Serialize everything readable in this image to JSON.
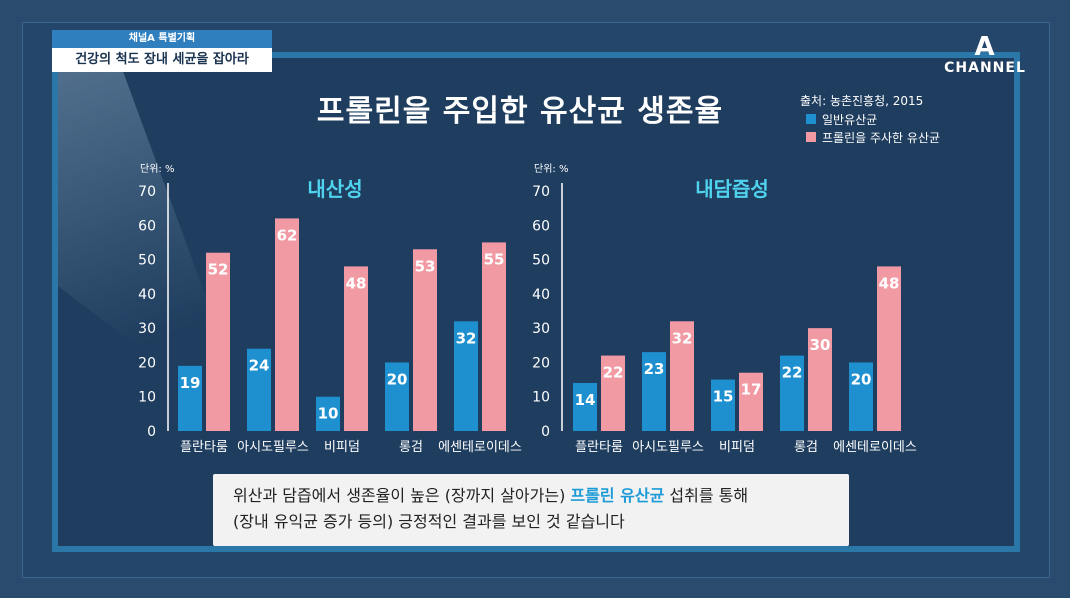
{
  "header": {
    "tag_top": "채널A 특별기획",
    "tag_bottom": "건강의 척도 장내 세균을 잡아라",
    "logo_mark": "A",
    "logo_text": "CHANNEL"
  },
  "title": "프롤린을 주입한 유산균 생존율",
  "source": "출처: 농촌진흥청, 2015",
  "colors": {
    "normal": "#1e8fcf",
    "proline": "#f29aa3",
    "subtitle": "#4fd3ef"
  },
  "legend": [
    {
      "name": "일반유산균",
      "color": "#1e8fcf"
    },
    {
      "name": "프롤린을 주사한 유산균",
      "color": "#f29aa3"
    }
  ],
  "chart_data": [
    {
      "type": "bar",
      "title": "내산성",
      "unit_label": "단위: %",
      "categories": [
        "플란타룸",
        "아시도필루스",
        "비피덤",
        "롱검",
        "에센테로이데스"
      ],
      "yticks": [
        0,
        10,
        20,
        30,
        40,
        50,
        60,
        70
      ],
      "ylim": [
        0,
        70
      ],
      "series": [
        {
          "name": "일반유산균",
          "values": [
            19,
            24,
            10,
            20,
            32
          ]
        },
        {
          "name": "프롤린을 주사한 유산균",
          "values": [
            52,
            62,
            48,
            53,
            55
          ]
        }
      ]
    },
    {
      "type": "bar",
      "title": "내담즙성",
      "unit_label": "단위: %",
      "categories": [
        "플란타룸",
        "아시도필루스",
        "비피덤",
        "롱검",
        "에센테로이데스"
      ],
      "yticks": [
        0,
        10,
        20,
        30,
        40,
        50,
        60,
        70
      ],
      "ylim": [
        0,
        70
      ],
      "series": [
        {
          "name": "일반유산균",
          "values": [
            14,
            23,
            15,
            22,
            20
          ]
        },
        {
          "name": "프롤린을 주사한 유산균",
          "values": [
            22,
            32,
            17,
            30,
            48
          ]
        }
      ]
    }
  ],
  "caption": {
    "line1_pre": "위산과 담즙에서 생존율이 높은 (장까지 살아가는) ",
    "line1_highlight": "프롤린 유산균",
    "line1_post": " 섭취를 통해",
    "line2": "(장내 유익균 증가 등의) 긍정적인 결과를 보인 것 같습니다"
  }
}
